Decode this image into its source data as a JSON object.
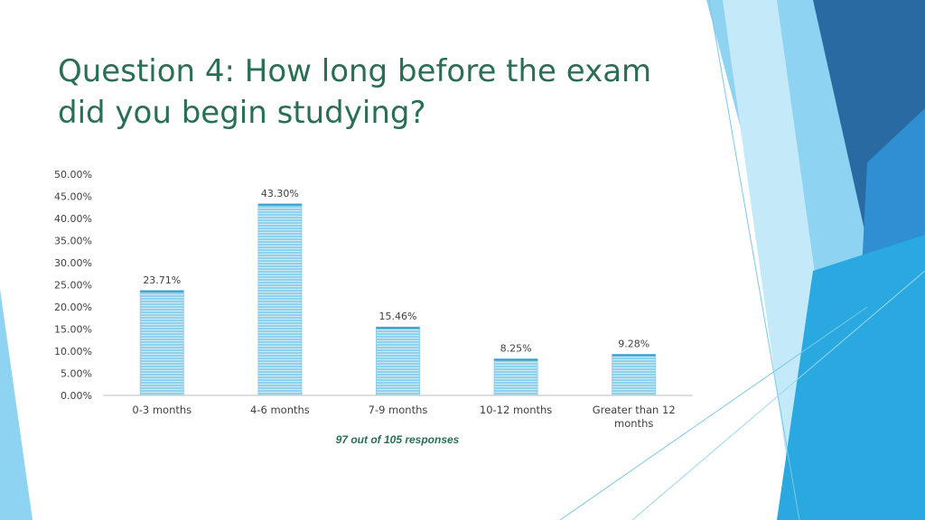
{
  "slide": {
    "title": "Question 4: How long before the exam did you begin studying?",
    "note": "97 out of 105 responses"
  },
  "colors": {
    "title": "#2a6e55",
    "bar_fill": "#8fd0eb",
    "bar_stripe": "#ffffff",
    "bar_top": "#3a9cc8",
    "axis": "#bfbfbf",
    "deco_light": "#8ed3f1",
    "deco_mid": "#29a9e0",
    "deco_dark": "#2a6aa3"
  },
  "chart_data": {
    "type": "bar",
    "categories": [
      "0-3 months",
      "4-6 months",
      "7-9 months",
      "10-12 months",
      "Greater than 12 months"
    ],
    "category_lines": [
      [
        "0-3 months"
      ],
      [
        "4-6 months"
      ],
      [
        "7-9 months"
      ],
      [
        "10-12 months"
      ],
      [
        "Greater than 12",
        "months"
      ]
    ],
    "values": [
      23.71,
      43.3,
      15.46,
      8.25,
      9.28
    ],
    "value_labels": [
      "23.71%",
      "43.30%",
      "15.46%",
      "8.25%",
      "9.28%"
    ],
    "y_ticks": [
      0,
      5,
      10,
      15,
      20,
      25,
      30,
      35,
      40,
      45,
      50
    ],
    "y_tick_labels": [
      "0.00%",
      "5.00%",
      "10.00%",
      "15.00%",
      "20.00%",
      "25.00%",
      "30.00%",
      "35.00%",
      "40.00%",
      "45.00%",
      "50.00%"
    ],
    "ylim": [
      0,
      50
    ],
    "title": "",
    "xlabel": "",
    "ylabel": "",
    "grid": false,
    "legend": "none"
  }
}
